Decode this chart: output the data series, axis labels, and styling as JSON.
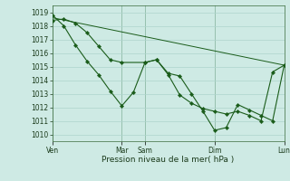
{
  "background_color": "#ceeae4",
  "grid_color": "#aed4cc",
  "line_color": "#1a5c1a",
  "xlabel": "Pression niveau de la mer( hPa )",
  "ylim": [
    1009.5,
    1019.5
  ],
  "yticks": [
    1010,
    1011,
    1012,
    1013,
    1014,
    1015,
    1016,
    1017,
    1018,
    1019
  ],
  "xtick_labels": [
    "Ven",
    "Mar",
    "Sam",
    "Dim",
    "Lun"
  ],
  "xtick_positions": [
    0,
    12,
    16,
    28,
    40
  ],
  "series1_x": [
    0,
    2,
    4,
    6,
    8,
    10,
    12,
    14,
    16,
    18,
    20,
    22,
    24,
    26,
    28,
    30,
    32,
    34,
    36,
    38,
    40
  ],
  "series1_y": [
    1018.8,
    1018.0,
    1016.6,
    1015.4,
    1014.4,
    1013.2,
    1012.1,
    1013.1,
    1015.3,
    1015.5,
    1014.5,
    1014.3,
    1013.0,
    1011.7,
    1010.3,
    1010.5,
    1012.2,
    1011.8,
    1011.4,
    1011.0,
    1015.1
  ],
  "series2_x": [
    0,
    2,
    4,
    6,
    8,
    10,
    12,
    16,
    18,
    20,
    22,
    24,
    26,
    28,
    30,
    32,
    34,
    36,
    38,
    40
  ],
  "series2_y": [
    1018.4,
    1018.5,
    1018.2,
    1017.5,
    1016.5,
    1015.5,
    1015.3,
    1015.3,
    1015.5,
    1014.4,
    1012.9,
    1012.3,
    1011.9,
    1011.7,
    1011.5,
    1011.7,
    1011.4,
    1011.0,
    1014.6,
    1015.1
  ],
  "series3_x": [
    0,
    40
  ],
  "series3_y": [
    1018.6,
    1015.1
  ],
  "vlines_x": [
    0,
    12,
    16,
    28,
    40
  ],
  "marker_size": 2.2,
  "figsize": [
    3.2,
    2.0
  ],
  "dpi": 100
}
